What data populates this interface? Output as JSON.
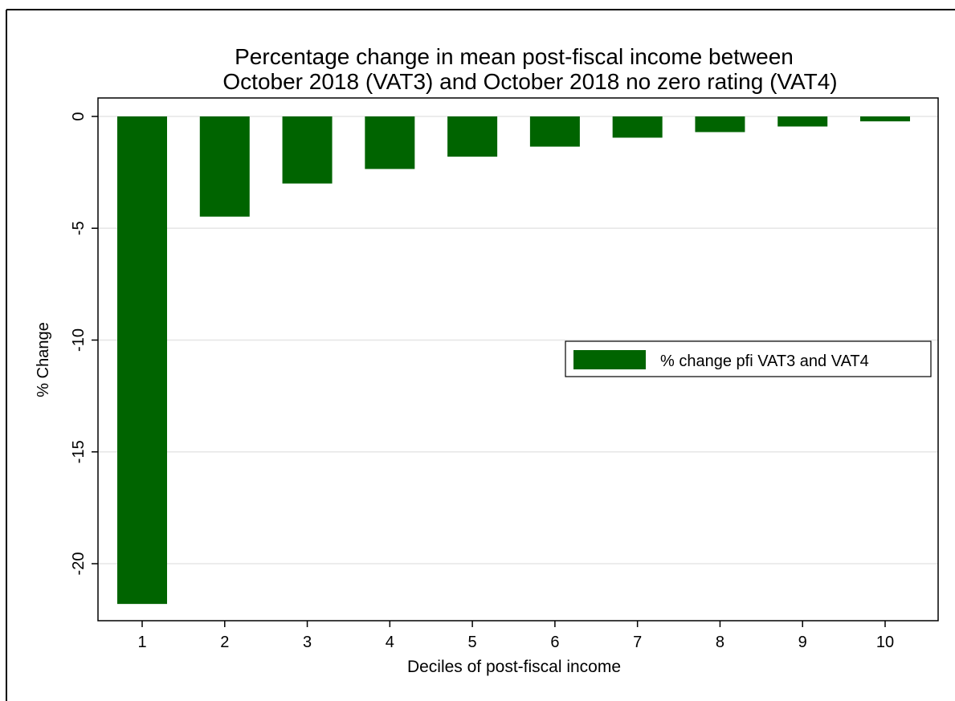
{
  "chart_data": {
    "type": "bar",
    "title": "Percentage change in mean post-fiscal income between",
    "subtitle": "October 2018 (VAT3) and October 2018 no zero rating (VAT4)",
    "xlabel": "Deciles of post-fiscal income",
    "ylabel": "% Change",
    "categories": [
      "1",
      "2",
      "3",
      "4",
      "5",
      "6",
      "7",
      "8",
      "9",
      "10"
    ],
    "series": [
      {
        "name": "% change pfi VAT3 and VAT4",
        "values": [
          -21.8,
          -4.48,
          -3.0,
          -2.35,
          -1.8,
          -1.35,
          -0.95,
          -0.7,
          -0.45,
          -0.22
        ],
        "color": "#006400"
      }
    ],
    "ylim": [
      -22.5,
      1.0
    ],
    "yticks": [
      0,
      -5,
      -10,
      -15,
      -20
    ],
    "ytick_labels": [
      "0",
      "-5",
      "-10",
      "-15",
      "-20"
    ],
    "grid": true,
    "legend_position": "right"
  }
}
